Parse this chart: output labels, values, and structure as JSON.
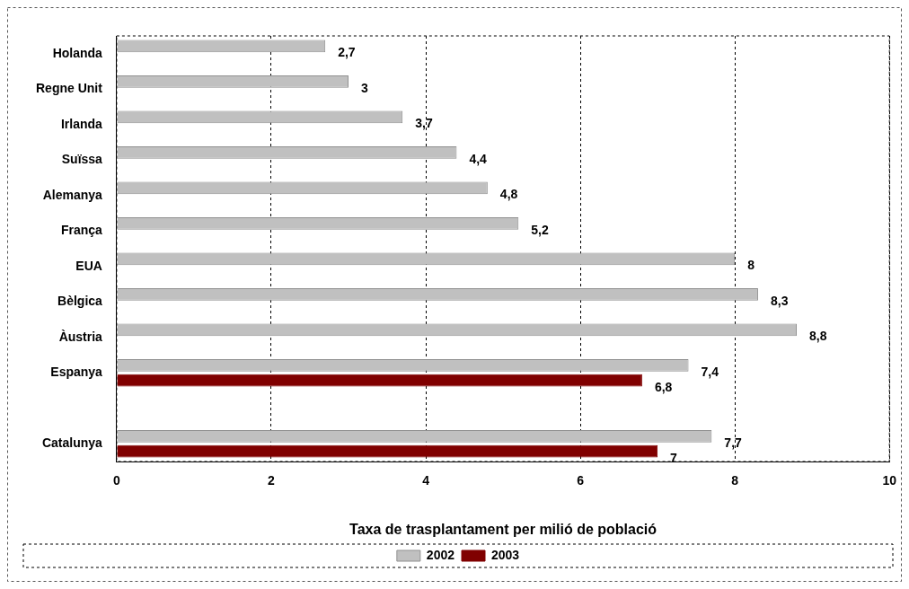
{
  "chart_data": {
    "type": "bar",
    "orientation": "horizontal",
    "xlabel": "Taxa de trasplantament per milió de població",
    "categories": [
      "Holanda",
      "Regne Unit",
      "Irlanda",
      "Suïssa",
      "Alemanya",
      "França",
      "EUA",
      "Bèlgica",
      "Àustria",
      "Espanya",
      null,
      "Catalunya"
    ],
    "series": [
      {
        "name": "2002",
        "color": "#c0c0c0",
        "values": [
          2.7,
          3,
          3.7,
          4.4,
          4.8,
          5.2,
          8,
          8.3,
          8.8,
          7.4,
          null,
          7.7
        ],
        "value_labels": [
          "2,7",
          "3",
          "3,7",
          "4,4",
          "4,8",
          "5,2",
          "8",
          "8,3",
          "8,8",
          "7,4",
          null,
          "7,7"
        ]
      },
      {
        "name": "2003",
        "color": "#800000",
        "values": [
          null,
          null,
          null,
          null,
          null,
          null,
          null,
          null,
          null,
          6.8,
          null,
          7
        ],
        "value_labels": [
          null,
          null,
          null,
          null,
          null,
          null,
          null,
          null,
          null,
          "6,8",
          null,
          "7"
        ]
      }
    ],
    "xlim": [
      0,
      10
    ],
    "xticks": [
      0,
      2,
      4,
      6,
      8,
      10
    ],
    "grid": "x",
    "legend": "bottom"
  }
}
